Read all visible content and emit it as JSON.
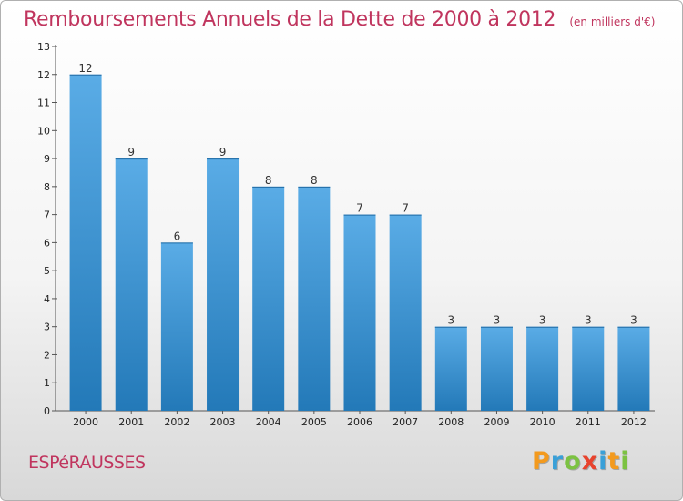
{
  "chart_data": {
    "type": "bar",
    "title": "Remboursements Annuels de la Dette de 2000 à 2012",
    "subtitle": "(en milliers d'€)",
    "categories": [
      "2000",
      "2001",
      "2002",
      "2003",
      "2004",
      "2005",
      "2006",
      "2007",
      "2008",
      "2009",
      "2010",
      "2011",
      "2012"
    ],
    "values": [
      12,
      9,
      6,
      9,
      8,
      8,
      7,
      7,
      3,
      3,
      3,
      3,
      3
    ],
    "value_labels": [
      "12",
      "9",
      "6",
      "9",
      "8",
      "8",
      "7",
      "7",
      "3",
      "3",
      "3",
      "3",
      "3"
    ],
    "ylim": [
      0,
      13
    ],
    "yticks": [
      "0",
      "1",
      "2",
      "3",
      "4",
      "5",
      "6",
      "7",
      "8",
      "9",
      "10",
      "11",
      "12",
      "13"
    ],
    "grid": false,
    "colors": {
      "bar_light": "#5aace6",
      "bar_dark": "#2379b8",
      "title": "#c0355e"
    }
  },
  "footer": {
    "town": "ESPéRAUSSES"
  },
  "logo": {
    "letters": [
      "P",
      "r",
      "o",
      "x",
      "i",
      "t",
      "i"
    ],
    "colors": [
      "#f39a1e",
      "#3aa0d8",
      "#7cc242",
      "#e8432d",
      "#3aa0d8",
      "#f39a1e",
      "#7cc242"
    ]
  }
}
